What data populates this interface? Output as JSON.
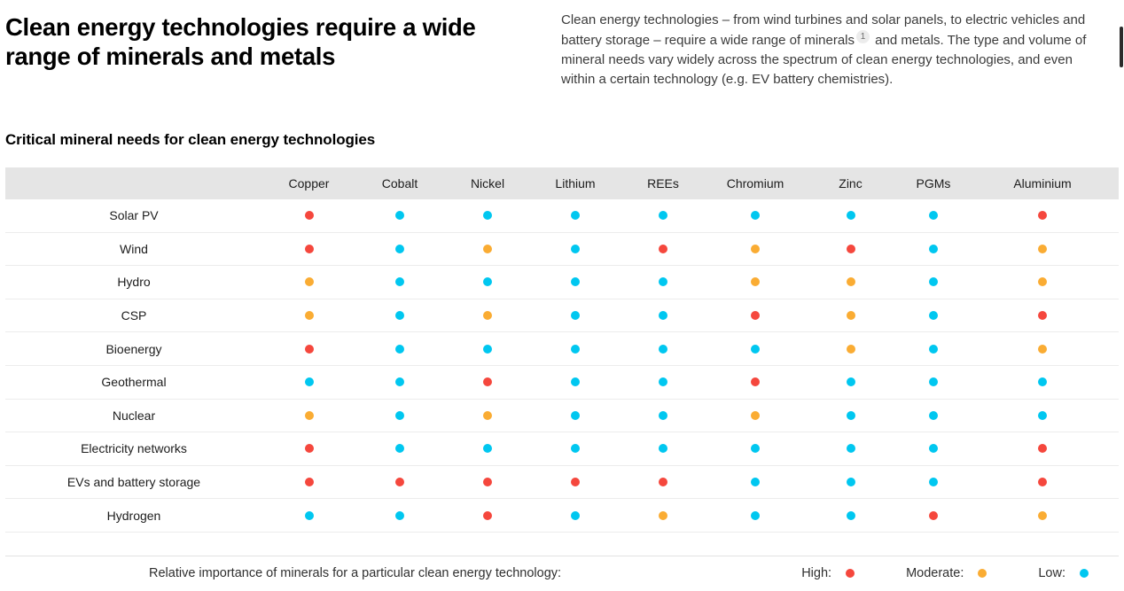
{
  "page": {
    "title": "Clean energy technologies require a wide range of minerals and metals",
    "intro": {
      "text_before_footnote": "Clean energy technologies – from wind turbines and solar panels, to electric vehicles and battery storage – require a wide range of minerals",
      "footnote_marker": "1",
      "text_after_footnote": " and metals. The type and volume of mineral needs vary widely across the spectrum of clean energy technologies, and even within a certain technology (e.g. EV battery chemistries)."
    },
    "section_heading": "Critical mineral needs for clean energy technologies"
  },
  "colors": {
    "high": "#f5473d",
    "moderate": "#faac33",
    "low": "#00c7f0",
    "table_header_bg": "#e5e5e5"
  },
  "legend": {
    "description": "Relative importance of minerals for a particular clean energy technology:",
    "items": [
      {
        "label": "High:",
        "level": "high"
      },
      {
        "label": "Moderate:",
        "level": "moderate"
      },
      {
        "label": "Low:",
        "level": "low"
      }
    ]
  },
  "chart_data": {
    "type": "heatmap",
    "title": "Critical mineral needs for clean energy technologies",
    "legend_title": "Relative importance of minerals for a particular clean energy technology",
    "scale": [
      "High",
      "Moderate",
      "Low"
    ],
    "columns": [
      "Copper",
      "Cobalt",
      "Nickel",
      "Lithium",
      "REEs",
      "Chromium",
      "Zinc",
      "PGMs",
      "Aluminium"
    ],
    "rows": [
      "Solar PV",
      "Wind",
      "Hydro",
      "CSP",
      "Bioenergy",
      "Geothermal",
      "Nuclear",
      "Electricity networks",
      "EVs and battery storage",
      "Hydrogen"
    ],
    "values": [
      [
        "High",
        "Low",
        "Low",
        "Low",
        "Low",
        "Low",
        "Low",
        "Low",
        "High"
      ],
      [
        "High",
        "Low",
        "Moderate",
        "Low",
        "High",
        "Moderate",
        "High",
        "Low",
        "Moderate"
      ],
      [
        "Moderate",
        "Low",
        "Low",
        "Low",
        "Low",
        "Moderate",
        "Moderate",
        "Low",
        "Moderate"
      ],
      [
        "Moderate",
        "Low",
        "Moderate",
        "Low",
        "Low",
        "High",
        "Moderate",
        "Low",
        "High"
      ],
      [
        "High",
        "Low",
        "Low",
        "Low",
        "Low",
        "Low",
        "Moderate",
        "Low",
        "Moderate"
      ],
      [
        "Low",
        "Low",
        "High",
        "Low",
        "Low",
        "High",
        "Low",
        "Low",
        "Low"
      ],
      [
        "Moderate",
        "Low",
        "Moderate",
        "Low",
        "Low",
        "Moderate",
        "Low",
        "Low",
        "Low"
      ],
      [
        "High",
        "Low",
        "Low",
        "Low",
        "Low",
        "Low",
        "Low",
        "Low",
        "High"
      ],
      [
        "High",
        "High",
        "High",
        "High",
        "High",
        "Low",
        "Low",
        "Low",
        "High"
      ],
      [
        "Low",
        "Low",
        "High",
        "Low",
        "Moderate",
        "Low",
        "Low",
        "High",
        "Moderate"
      ]
    ]
  }
}
